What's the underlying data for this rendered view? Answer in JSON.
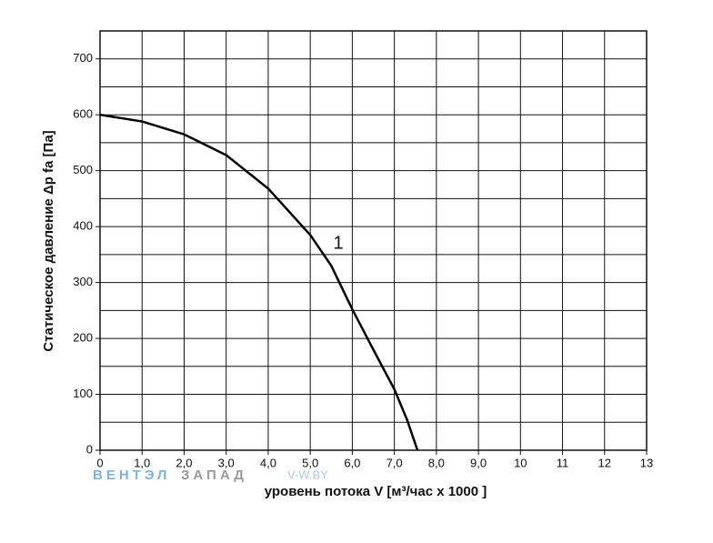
{
  "chart_data": {
    "type": "line",
    "x_label": "уровень потока  V [м³/час x 1000 ]",
    "y_label": "Статическое давление  Δp fa [Па]",
    "x": [
      0,
      1,
      2,
      3,
      4,
      5,
      5.5,
      6,
      6.5,
      7,
      7.3,
      7.55
    ],
    "series": [
      {
        "name": "1",
        "color": "#000000",
        "values": [
          600,
          588,
          565,
          528,
          468,
          385,
          330,
          252,
          180,
          109,
          55,
          0
        ]
      }
    ],
    "xlim": [
      0,
      13
    ],
    "xticks": [
      0,
      {
        "value": 1,
        "label": "1,0"
      },
      {
        "value": 2,
        "label": "2,0"
      },
      {
        "value": 3,
        "label": "3,0"
      },
      {
        "value": 4,
        "label": "4,0"
      },
      {
        "value": 5,
        "label": "5,0"
      },
      {
        "value": 6,
        "label": "6,0"
      },
      {
        "value": 7,
        "label": "7,0"
      },
      {
        "value": 8,
        "label": "8,0"
      },
      {
        "value": 9,
        "label": "9,0"
      },
      10,
      11,
      12,
      13
    ],
    "ylim": [
      0,
      750
    ],
    "yticks": [
      0,
      100,
      200,
      300,
      400,
      500,
      600,
      700
    ],
    "ygrid": [
      50,
      150,
      250,
      350,
      450,
      550,
      650,
      750
    ],
    "grid": true,
    "watermark": [
      "ВЕНТЭЛ",
      "ЗАПАД",
      "V-W.BY"
    ]
  }
}
